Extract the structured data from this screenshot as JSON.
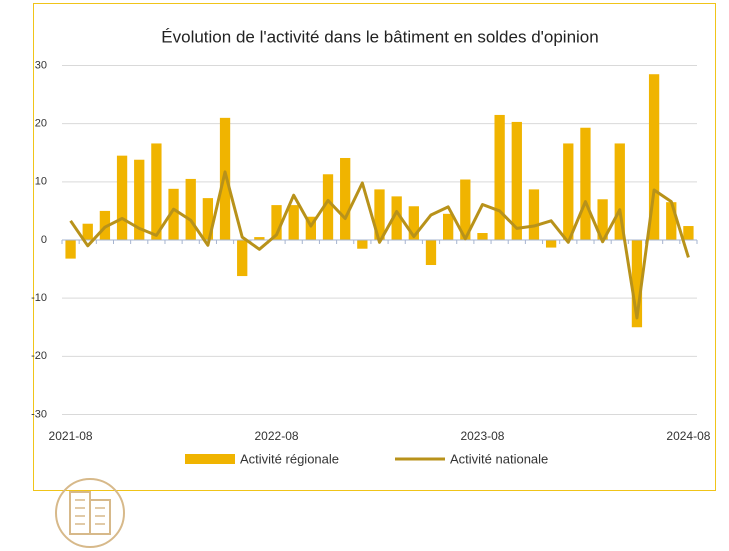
{
  "chart_data": {
    "type": "bar_line",
    "title": "Évolution de l'activité dans le bâtiment en soldes d'opinion",
    "categories": [
      "2021-08",
      null,
      null,
      null,
      null,
      null,
      null,
      null,
      null,
      null,
      null,
      null,
      "2022-08",
      null,
      null,
      null,
      null,
      null,
      null,
      null,
      null,
      null,
      null,
      null,
      "2023-08",
      null,
      null,
      null,
      null,
      null,
      null,
      null,
      null,
      null,
      null,
      null,
      "2024-08"
    ],
    "series": [
      {
        "name": "Activité régionale",
        "kind": "bar",
        "color": "#f0b400",
        "values": [
          -3.2,
          2.8,
          5.0,
          14.5,
          13.8,
          16.6,
          8.8,
          10.5,
          7.2,
          21.0,
          -6.2,
          0.5,
          6.0,
          6.0,
          4.0,
          11.3,
          14.1,
          -1.5,
          8.7,
          7.5,
          5.8,
          -4.3,
          4.5,
          10.4,
          1.2,
          21.5,
          20.3,
          8.7,
          -1.3,
          16.6,
          19.3,
          7.0,
          16.6,
          -15.0,
          28.5,
          6.5,
          2.4
        ]
      },
      {
        "name": "Activité nationale",
        "kind": "line",
        "color": "#b8921a",
        "values": [
          3.3,
          -1.0,
          2.2,
          3.7,
          2.0,
          0.8,
          5.3,
          3.4,
          -0.9,
          11.7,
          0.5,
          -1.6,
          0.9,
          7.7,
          2.4,
          6.8,
          3.7,
          9.8,
          -0.4,
          4.9,
          0.6,
          4.3,
          5.7,
          0.2,
          6.1,
          5.0,
          2.0,
          2.4,
          3.3,
          -0.4,
          6.6,
          -0.3,
          5.2,
          -13.4,
          8.6,
          6.6,
          -3.0
        ]
      }
    ],
    "ylim": [
      -30,
      30
    ],
    "yticks": [
      -30,
      -20,
      -10,
      0,
      10,
      20,
      30
    ],
    "grid": true,
    "legend": "bottom"
  }
}
